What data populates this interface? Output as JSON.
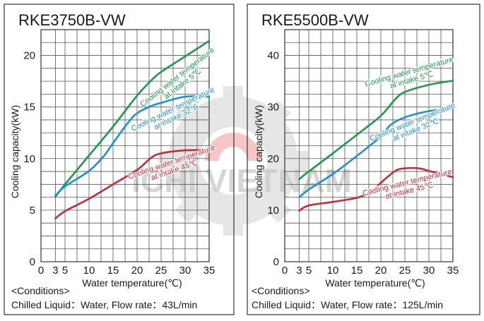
{
  "watermark": {
    "text": "ICHI VIETNAM",
    "color": "#c9c9c9",
    "accent": "#f29a9a"
  },
  "colors": {
    "green": "#1a9a4a",
    "blue": "#1e8fd0",
    "red": "#c62a35",
    "grid": "#555555",
    "frame": "#333333"
  },
  "chart_data": [
    {
      "type": "line",
      "title": "RKE3750B-VW",
      "xlabel": "Water temperature(℃)",
      "ylabel": "Cooling capacity(kW)",
      "xlim": [
        0,
        35
      ],
      "ylim": [
        0,
        22.5
      ],
      "xticks": [
        0,
        3,
        5,
        10,
        15,
        20,
        25,
        30,
        35
      ],
      "xtick_labels": [
        "0",
        "3",
        "5",
        "10",
        "15",
        "20",
        "25",
        "30",
        "35"
      ],
      "yticks": [
        0,
        5,
        10,
        15,
        20
      ],
      "ytick_labels": [
        "0",
        "5",
        "10",
        "15",
        "20"
      ],
      "series": [
        {
          "name": "Cooling water temperature at intake 5℃",
          "color": "green",
          "x": [
            3,
            5,
            10,
            15,
            20,
            23,
            25,
            30,
            35
          ],
          "y": [
            6.3,
            7.5,
            10.3,
            13.1,
            16.1,
            17.6,
            18.4,
            19.9,
            21.4
          ]
        },
        {
          "name": "Cooling water temperature at intake 32℃",
          "color": "blue",
          "x": [
            3,
            5,
            10,
            13,
            15,
            18,
            20,
            23,
            25,
            30,
            35
          ],
          "y": [
            6.4,
            7.3,
            8.8,
            10.2,
            11.5,
            13.4,
            14.4,
            15.1,
            15.4,
            16.0,
            16.0
          ]
        },
        {
          "name": "Cooling water temperature at intake 45℃",
          "color": "red",
          "x": [
            3,
            5,
            10,
            15,
            20,
            23,
            25,
            30,
            35
          ],
          "y": [
            4.2,
            4.9,
            6.1,
            7.5,
            8.9,
            10.1,
            10.5,
            10.8,
            10.8
          ]
        }
      ],
      "annotations": [
        {
          "lines": [
            "Cooling water temperature",
            "at intake 5℃"
          ],
          "color": "green"
        },
        {
          "lines": [
            "Cooling water temperature",
            "at intake 32℃"
          ],
          "color": "blue"
        },
        {
          "lines": [
            "Cooling water temperature",
            "at intake 45℃"
          ],
          "color": "red"
        }
      ],
      "conditions_label": "<Conditions>",
      "conditions_text": "Chilled Liquid：Water,  Flow rate：43L/min"
    },
    {
      "type": "line",
      "title": "RKE5500B-VW",
      "xlabel": "Water temperature(℃)",
      "ylabel": "Cooling capacity(kW)",
      "xlim": [
        0,
        35
      ],
      "ylim": [
        0,
        45
      ],
      "xticks": [
        0,
        3,
        5,
        10,
        15,
        20,
        25,
        30,
        35
      ],
      "xtick_labels": [
        "0",
        "3",
        "5",
        "10",
        "15",
        "20",
        "25",
        "30",
        "35"
      ],
      "yticks": [
        0,
        10,
        20,
        30,
        40
      ],
      "ytick_labels": [
        "0",
        "10",
        "20",
        "30",
        "40"
      ],
      "series": [
        {
          "name": "Cooling water temperature at intake 5℃",
          "color": "green",
          "x": [
            3,
            5,
            10,
            15,
            20,
            23,
            25,
            30,
            35
          ],
          "y": [
            16.0,
            17.5,
            21.0,
            24.6,
            28.3,
            31.5,
            32.9,
            34.3,
            35.1
          ]
        },
        {
          "name": "Cooling water temperature at intake 32℃",
          "color": "blue",
          "x": [
            3,
            5,
            10,
            15,
            20,
            22,
            25,
            30,
            35
          ],
          "y": [
            12.5,
            14.0,
            17.0,
            20.5,
            24.3,
            26.5,
            28.0,
            29.2,
            29.8
          ]
        },
        {
          "name": "Cooling water temperature at intake 45℃",
          "color": "red",
          "x": [
            3,
            5,
            10,
            15,
            18,
            20,
            23,
            25,
            28,
            30,
            35
          ],
          "y": [
            9.9,
            10.9,
            11.6,
            12.4,
            13.5,
            15.3,
            17.6,
            18.1,
            18.1,
            17.6,
            16.4
          ]
        }
      ],
      "annotations": [
        {
          "lines": [
            "Cooling water temperature",
            "at intake 5℃"
          ],
          "color": "green"
        },
        {
          "lines": [
            "Cooling water temperature",
            "at intake 32℃"
          ],
          "color": "blue"
        },
        {
          "lines": [
            "Cooling water temperature",
            "at intake 45℃"
          ],
          "color": "red"
        }
      ],
      "conditions_label": "<Conditions>",
      "conditions_text": "Chilled Liquid：Water,  Flow rate：125L/min"
    }
  ]
}
